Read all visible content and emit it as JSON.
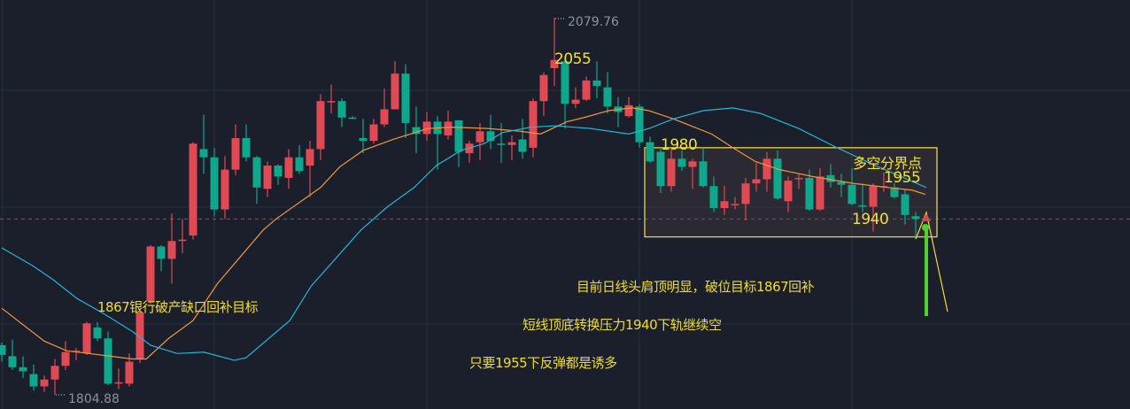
{
  "chart_data": {
    "type": "candlestick",
    "title": "",
    "xlabel": "",
    "ylabel": "",
    "grid": true,
    "colors": {
      "background": "#1a1f2b",
      "up": "#e04a55",
      "down": "#10a88c",
      "ma_orange": "#f0983a",
      "ma_cyan": "#22b6d8",
      "annotation": "#f0dd2e",
      "box_border": "#e6d648",
      "current_price_line": "#b8434b",
      "arrow_green": "#4fd12f"
    },
    "candle_format": [
      "open",
      "high",
      "low",
      "close"
    ],
    "candles": [
      [
        1841,
        1843,
        1829,
        1834
      ],
      [
        1833,
        1845,
        1823,
        1825
      ],
      [
        1825,
        1833,
        1817,
        1822
      ],
      [
        1820,
        1827,
        1808,
        1811
      ],
      [
        1811,
        1819,
        1807,
        1816
      ],
      [
        1816,
        1831,
        1804.88,
        1826
      ],
      [
        1826,
        1844,
        1823,
        1836
      ],
      [
        1836,
        1839,
        1830,
        1837
      ],
      [
        1835,
        1858,
        1834,
        1857
      ],
      [
        1854,
        1858,
        1844,
        1846
      ],
      [
        1846,
        1851,
        1812,
        1813
      ],
      [
        1813,
        1824,
        1809,
        1814
      ],
      [
        1813,
        1835,
        1811,
        1829
      ],
      [
        1831,
        1867,
        1828,
        1865
      ],
      [
        1873,
        1914,
        1871,
        1913
      ],
      [
        1913,
        1914,
        1895,
        1904
      ],
      [
        1904,
        1937,
        1886,
        1917
      ],
      [
        1917,
        1933,
        1908,
        1918
      ],
      [
        1921,
        1989,
        1918,
        1988
      ],
      [
        1984,
        2009,
        1966,
        1978
      ],
      [
        1978,
        1985,
        1935,
        1940
      ],
      [
        1940,
        1979,
        1933,
        1969
      ],
      [
        1969,
        2002,
        1965,
        1992
      ],
      [
        1992,
        2002,
        1975,
        1978
      ],
      [
        1978,
        1979,
        1944,
        1956
      ],
      [
        1955,
        1975,
        1949,
        1972
      ],
      [
        1972,
        1973,
        1958,
        1964
      ],
      [
        1963,
        1984,
        1955,
        1978
      ],
      [
        1978,
        1987,
        1966,
        1968
      ],
      [
        1972,
        1990,
        1949,
        1984
      ],
      [
        1984,
        2024,
        1976,
        2019
      ],
      [
        2019,
        2031,
        2010,
        2019
      ],
      [
        2019,
        2021,
        2000,
        2007
      ],
      [
        2007,
        2008,
        2006,
        2006
      ],
      [
        1992,
        2006,
        1981,
        1990
      ],
      [
        1990,
        2006,
        1988,
        2002
      ],
      [
        2002,
        2028,
        2000,
        2013
      ],
      [
        2013,
        2048,
        2013,
        2039
      ],
      [
        2039,
        2046,
        1992,
        2003
      ],
      [
        2000,
        2015,
        1981,
        1995
      ],
      [
        1995,
        2011,
        1990,
        2004
      ],
      [
        2004,
        2008,
        1969,
        1995
      ],
      [
        1994,
        2012,
        1991,
        2004
      ],
      [
        2005,
        2005,
        1971,
        1982
      ],
      [
        1981,
        1990,
        1974,
        1988
      ],
      [
        1989,
        2003,
        1976,
        1997
      ],
      [
        1997,
        2009,
        1984,
        1990
      ],
      [
        1988,
        2003,
        1974,
        1987
      ],
      [
        1987,
        1994,
        1976,
        1989
      ],
      [
        1991,
        2006,
        1977,
        1982
      ],
      [
        1985,
        2021,
        1978,
        2019
      ],
      [
        2019,
        2040,
        2008,
        2038
      ],
      [
        2043,
        2079.76,
        2030,
        2049
      ],
      [
        2048,
        2051,
        1999,
        2017
      ],
      [
        2017,
        2029,
        2014,
        2020
      ],
      [
        2020,
        2037,
        2019,
        2034
      ],
      [
        2034,
        2048,
        2021,
        2030
      ],
      [
        2029,
        2040,
        2010,
        2015
      ],
      [
        2015,
        2022,
        2000,
        2011
      ],
      [
        2008,
        2022,
        2007,
        2016
      ],
      [
        2015,
        2017,
        1985,
        1989
      ],
      [
        1989,
        1993,
        1974,
        1975
      ],
      [
        1982,
        1985,
        1952,
        1957
      ],
      [
        1957,
        1984,
        1953,
        1977
      ],
      [
        1977,
        1983,
        1968,
        1971
      ],
      [
        1971,
        1977,
        1955,
        1975
      ],
      [
        1975,
        1985,
        1956,
        1957
      ],
      [
        1957,
        1964,
        1938,
        1941
      ],
      [
        1941,
        1957,
        1936,
        1946
      ],
      [
        1943,
        1949,
        1940,
        1944
      ],
      [
        1944,
        1963,
        1932,
        1959
      ],
      [
        1959,
        1974,
        1953,
        1962
      ],
      [
        1962,
        1982,
        1953,
        1977
      ],
      [
        1977,
        1983,
        1947,
        1948
      ],
      [
        1946,
        1964,
        1938,
        1961
      ],
      [
        1962,
        1966,
        1955,
        1963
      ],
      [
        1963,
        1969,
        1939,
        1940
      ],
      [
        1940,
        1970,
        1939,
        1964
      ],
      [
        1965,
        1973,
        1956,
        1960
      ],
      [
        1960,
        1966,
        1949,
        1958
      ],
      [
        1958,
        1970,
        1943,
        1944
      ],
      [
        1943,
        1959,
        1938,
        1942
      ],
      [
        1942,
        1959,
        1924,
        1957
      ],
      [
        1956,
        1967,
        1953,
        1957
      ],
      [
        1956,
        1959,
        1948,
        1949
      ],
      [
        1951,
        1955,
        1929,
        1936
      ],
      [
        1935,
        1938,
        1919,
        1933
      ]
    ],
    "ma_orange": [
      [
        0,
        1868
      ],
      [
        4,
        1844
      ],
      [
        6.1,
        1837
      ],
      [
        8.2,
        1835
      ],
      [
        12.3,
        1831
      ],
      [
        13.6,
        1831
      ],
      [
        15.7,
        1846
      ],
      [
        18,
        1859
      ],
      [
        20.3,
        1886
      ],
      [
        24.6,
        1925
      ],
      [
        25.8,
        1933
      ],
      [
        30,
        1956
      ],
      [
        31.8,
        1971
      ],
      [
        34,
        1983
      ],
      [
        36.8,
        1991
      ],
      [
        40.1,
        1999
      ],
      [
        42.3,
        2000
      ],
      [
        45.7,
        1999
      ],
      [
        48.8,
        1997
      ],
      [
        50.7,
        1995
      ],
      [
        53.2,
        2004
      ],
      [
        54.8,
        2007
      ],
      [
        57.1,
        2012
      ],
      [
        59.3,
        2014
      ],
      [
        60.9,
        2012
      ],
      [
        63.2,
        2006
      ],
      [
        66.8,
        1995
      ],
      [
        68.8,
        1985
      ],
      [
        70.9,
        1975
      ],
      [
        73.2,
        1969
      ],
      [
        76.3,
        1964
      ],
      [
        80.1,
        1959
      ],
      [
        83.4,
        1956
      ],
      [
        85.7,
        1954
      ],
      [
        86.9,
        1951
      ]
    ],
    "ma_cyan": [
      [
        0,
        1912
      ],
      [
        2.9,
        1899
      ],
      [
        4.8,
        1889
      ],
      [
        7.1,
        1875
      ],
      [
        9.6,
        1864
      ],
      [
        12.3,
        1851
      ],
      [
        14,
        1841
      ],
      [
        16.5,
        1835
      ],
      [
        19,
        1836
      ],
      [
        21.9,
        1830
      ],
      [
        23,
        1832
      ],
      [
        27.1,
        1859
      ],
      [
        29.1,
        1884
      ],
      [
        33.8,
        1925
      ],
      [
        36.3,
        1942
      ],
      [
        38.8,
        1956
      ],
      [
        40.9,
        1972
      ],
      [
        43.2,
        1983
      ],
      [
        45.4,
        1988
      ],
      [
        47.1,
        1996
      ],
      [
        49.8,
        2000
      ],
      [
        52.1,
        2001
      ],
      [
        55.4,
        1999
      ],
      [
        59,
        1995
      ],
      [
        60.9,
        1999
      ],
      [
        63.2,
        2006
      ],
      [
        66,
        2012
      ],
      [
        68.8,
        2014
      ],
      [
        71.4,
        2010
      ],
      [
        75,
        1999
      ],
      [
        78.6,
        1985
      ],
      [
        82.2,
        1972
      ],
      [
        87,
        1956
      ]
    ],
    "current_price_line": 1933,
    "range_box": {
      "from_index": 60.5,
      "to_index": 88,
      "price_low": 1920,
      "price_high": 1985
    },
    "extremes": {
      "high_label": "2079.76",
      "high_index": 52,
      "high_value": 2079.76,
      "low_label": "1804.88",
      "low_index": 5,
      "low_value": 1804.88
    },
    "annotations": {
      "level_2055": "2055",
      "level_1980": "1980",
      "bull_bear_divide": "多空分界点",
      "level_1955": "1955",
      "level_1940": "1940",
      "gap_target": "1867银行破产缺口回补目标",
      "note_head_shoulders": "目前日线头肩顶明显，破位目标1867回补",
      "note_short_term": "短线顶底转换压力1940下轨继续空",
      "note_rebound": "只要1955下反弹都是诱多"
    }
  }
}
